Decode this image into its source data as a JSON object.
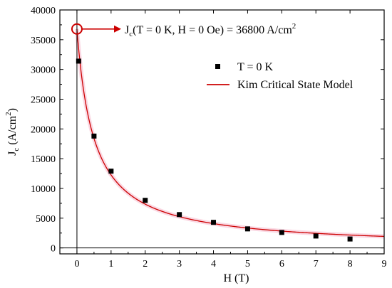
{
  "chart_data": {
    "type": "scatter",
    "xlabel": "H (T)",
    "ylabel": {
      "main": "J",
      "sub": "c",
      "units": " (A/cm",
      "units_sup": "2",
      "close": ")"
    },
    "xlim": [
      -0.5,
      9
    ],
    "ylim": [
      -1000,
      40000
    ],
    "xticks": [
      0,
      1,
      2,
      3,
      4,
      5,
      6,
      7,
      8,
      9
    ],
    "yticks": [
      0,
      5000,
      10000,
      15000,
      20000,
      25000,
      30000,
      35000,
      40000
    ],
    "grid": false,
    "legend_position": "upper-right",
    "series": [
      {
        "name": "T = 0 K",
        "kind": "markers",
        "marker": "square",
        "color": "#000000",
        "x": [
          0.05,
          0.5,
          1,
          2,
          3,
          4,
          5,
          6,
          7,
          8
        ],
        "y": [
          31400,
          18800,
          12900,
          8000,
          5600,
          4300,
          3200,
          2600,
          2000,
          1500
        ]
      },
      {
        "name": "Kim Critical State Model",
        "kind": "line",
        "color": "#cc0000",
        "band_color": "#f6b8cc",
        "model": {
          "Jc0": 36800,
          "H0": 0.5
        }
      }
    ],
    "annotation": {
      "point": {
        "x": 0,
        "y": 36800
      },
      "color": "#cc0000",
      "text": {
        "main": "J",
        "sub": "c",
        "rest": "(T = 0 K, H = 0 Oe) = 36800 A/cm",
        "sup": "2"
      }
    }
  }
}
